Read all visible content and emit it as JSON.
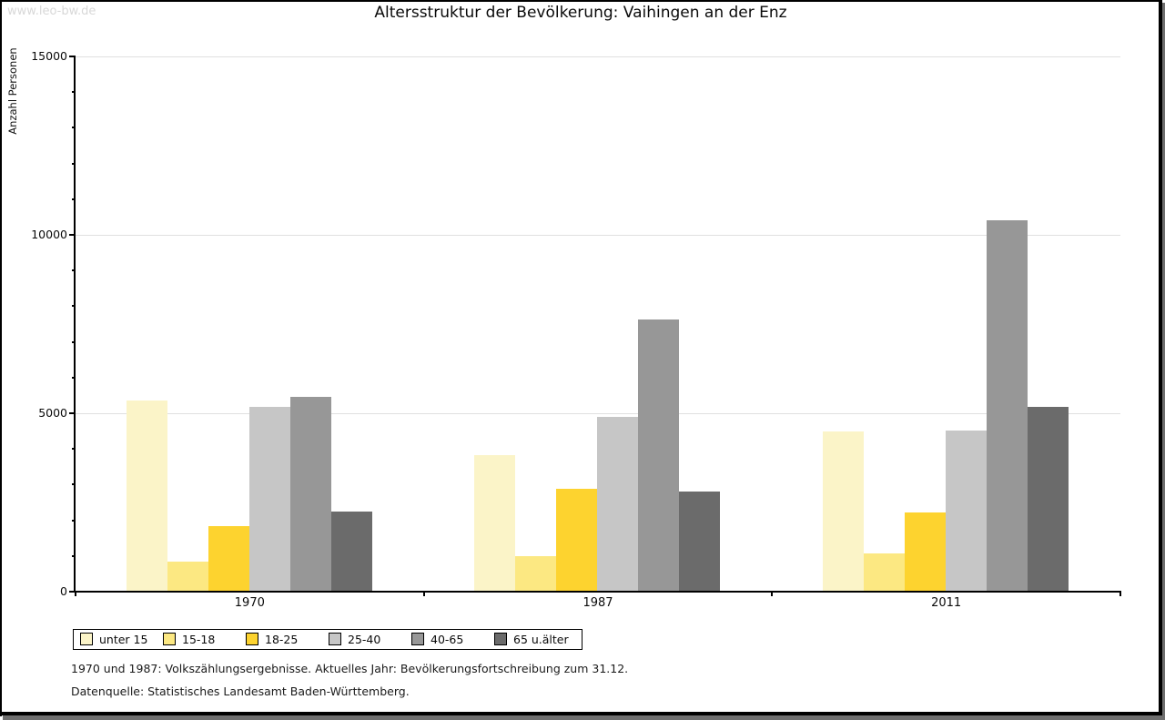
{
  "watermark": "www.leo-bw.de",
  "chart_data": {
    "type": "bar",
    "title": "Altersstruktur der Bevölkerung: Vaihingen an der Enz",
    "ylabel": "Anzahl Personen",
    "xlabel": "",
    "categories": [
      "1970",
      "1987",
      "2011"
    ],
    "series": [
      {
        "name": "unter 15",
        "color": "#FBF4C8",
        "values": [
          5350,
          3830,
          4490
        ]
      },
      {
        "name": "15-18",
        "color": "#FCE882",
        "values": [
          840,
          1000,
          1060
        ]
      },
      {
        "name": "18-25",
        "color": "#FDD32F",
        "values": [
          1830,
          2880,
          2210
        ]
      },
      {
        "name": "25-40",
        "color": "#C6C6C6",
        "values": [
          5170,
          4910,
          4510
        ]
      },
      {
        "name": "40-65",
        "color": "#979797",
        "values": [
          5470,
          7630,
          10400
        ]
      },
      {
        "name": "65 u.älter",
        "color": "#6B6B6B",
        "values": [
          2240,
          2810,
          5170
        ]
      }
    ],
    "ylim": [
      0,
      15000
    ],
    "ytick_major": 5000,
    "ytick_minor": 1000,
    "ytick_labels": [
      "0",
      "5000",
      "10000",
      "15000"
    ],
    "grid": "horizontal-major",
    "grid_color": "#E0E0E0",
    "axis_color": "#000000",
    "legend_position": "bottom-left"
  },
  "footnotes": [
    "1970 und 1987: Volkszählungsergebnisse. Aktuelles Jahr: Bevölkerungsfortschreibung zum 31.12.",
    "Datenquelle: Statistisches Landesamt Baden-Württemberg."
  ]
}
